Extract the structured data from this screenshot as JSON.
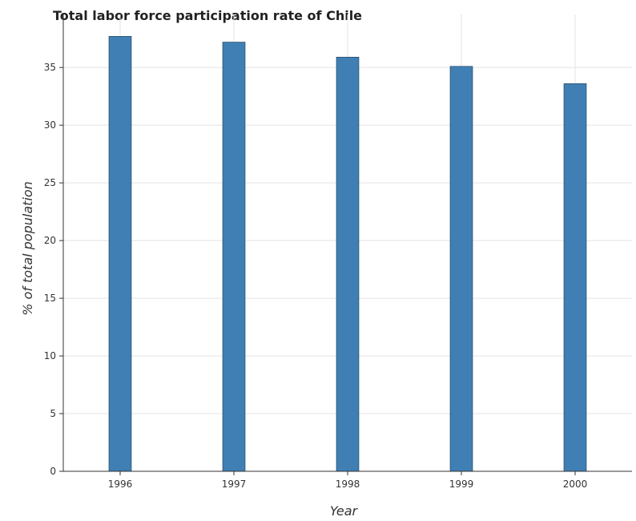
{
  "chart_data": {
    "type": "bar",
    "title": "Total labor force participation rate of Chile",
    "xlabel": "Year",
    "ylabel": "% of total population",
    "categories": [
      "1996",
      "1997",
      "1998",
      "1999",
      "2000"
    ],
    "values": [
      37.7,
      37.2,
      35.9,
      35.1,
      33.6
    ],
    "ylim": [
      0,
      39.6
    ],
    "yticks": [
      0,
      5,
      10,
      15,
      20,
      25,
      30,
      35
    ],
    "grid": true,
    "bar_color": "#3f7fb4"
  }
}
